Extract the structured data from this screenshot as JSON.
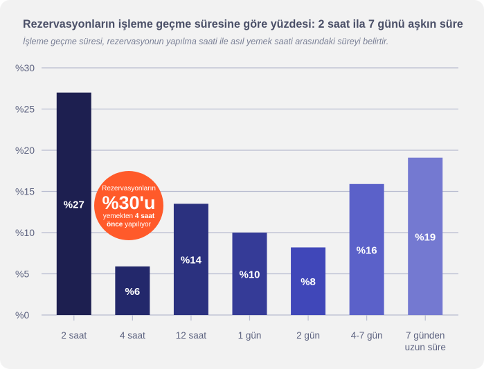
{
  "title": "Rezervasyonların işleme geçme süresine göre yüzdesi: 2 saat ila 7 günü aşkın süre",
  "subtitle": "İşleme geçme süresi, rezervasyonun yapılma saati ile asıl yemek saati arasındaki süreyi belirtir.",
  "callout": {
    "line1": "Rezervasyonların",
    "big": "%30'u",
    "line3a": "yemekten ",
    "line3b": "4 saat",
    "line4a": "önce",
    "line4b": " yapılıyor",
    "color": "#ff5a2a"
  },
  "chart_data": {
    "type": "bar",
    "title": "Rezervasyonların işleme geçme süresine göre yüzdesi: 2 saat ila 7 günü aşkın süre",
    "xlabel": "",
    "ylabel": "",
    "ylim": [
      0,
      30
    ],
    "yticks": [
      "%0",
      "%5",
      "%10",
      "%15",
      "%20",
      "%25",
      "%30"
    ],
    "categories": [
      [
        "2 saat"
      ],
      [
        "4 saat"
      ],
      [
        "12 saat"
      ],
      [
        "1 gün"
      ],
      [
        "2 gün"
      ],
      [
        "4-7 gün"
      ],
      [
        "7 günden",
        "uzun süre"
      ]
    ],
    "values": [
      27,
      5.9,
      13.5,
      10,
      8.2,
      15.9,
      19.1
    ],
    "labels": [
      "%27",
      "%6",
      "%14",
      "%10",
      "%8",
      "%16",
      "%19"
    ],
    "colors": [
      "#1d1f50",
      "#23286b",
      "#2b317f",
      "#353b97",
      "#4047b9",
      "#5b61c9",
      "#7479d1"
    ],
    "grid": true
  }
}
